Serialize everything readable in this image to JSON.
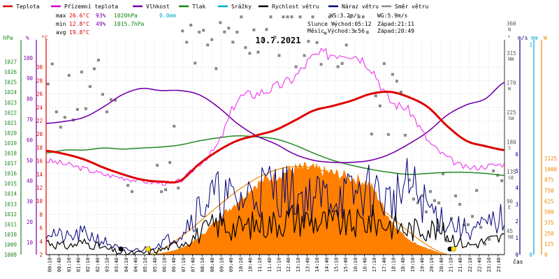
{
  "legend": [
    {
      "label": "Teplota",
      "color": "#dd0000"
    },
    {
      "label": "Přízemní teplota",
      "color": "#cc00cc"
    },
    {
      "label": "Vlhkost",
      "color": "#7700aa"
    },
    {
      "label": "Tlak",
      "color": "#118811"
    },
    {
      "label": "Srážky",
      "color": "#00aacc"
    },
    {
      "label": "Rychlost větru",
      "color": "#000000"
    },
    {
      "label": "Náraz větru",
      "color": "#000077"
    },
    {
      "label": "Směr větru",
      "color": "#888888"
    }
  ],
  "stats": {
    "max_label": "max",
    "max_temp": "26.6°C",
    "max_hum": "93%",
    "max_press": "1020hPa",
    "max_rain": "0.0mm",
    "min_label": "min",
    "min_temp": "12.8°C",
    "min_hum": "49%",
    "min_press": "1015.7hPa",
    "avg_label": "avg",
    "avg_temp": "19.8°C"
  },
  "wind_info": {
    "ws": "WS:3.2m/s",
    "wg": "WG:5.9m/s",
    "sun_rise": "Slunce Východ:05:12",
    "sun_set": "Západ:21:11",
    "moon_rise": "Měsíc  Východ:3:56",
    "moon_set": "Západ:20:49"
  },
  "date": "10.7.2021",
  "axis_units": {
    "hpa": "hPa",
    "pct": "%",
    "degc": "°C",
    "deg": "°",
    "ms": "m/s",
    "mm": "mm",
    "w": "W",
    "time": "čas"
  },
  "colors": {
    "temp": "#dd0000",
    "ground": "#ee44ee",
    "hum": "#7700aa",
    "press": "#228822",
    "wind": "#000000",
    "gust": "#000077",
    "dir": "#888888",
    "solar_area": "#ff8000",
    "solar_max": "#ee8800",
    "rain": "#00aacc"
  },
  "chart_data": {
    "type": "line",
    "title": "10.7.2021",
    "x_label": "čas",
    "x_ticks": [
      "00:10",
      "00:40",
      "01:10",
      "01:40",
      "02:10",
      "02:40",
      "03:10",
      "03:40",
      "04:10",
      "04:40",
      "05:10",
      "05:40",
      "06:10",
      "06:40",
      "07:10",
      "07:40",
      "08:10",
      "08:40",
      "09:10",
      "09:40",
      "10:10",
      "10:40",
      "11:10",
      "11:40",
      "12:10",
      "12:40",
      "13:10",
      "13:40",
      "14:10",
      "14:40",
      "15:10",
      "15:40",
      "16:10",
      "16:40",
      "17:10",
      "17:40",
      "18:10",
      "18:40",
      "19:10",
      "19:40",
      "20:10",
      "20:40",
      "21:10",
      "21:40",
      "22:10",
      "22:40",
      "23:10",
      "23:40"
    ],
    "axes": {
      "pressure_hPa": {
        "range": [
          1008,
          1028
        ],
        "ticks": [
          1008,
          1009,
          1010,
          1011,
          1012,
          1013,
          1014,
          1015,
          1016,
          1017,
          1018,
          1019,
          1020,
          1021,
          1022,
          1023,
          1024,
          1025,
          1026,
          1027
        ]
      },
      "humidity_pct": {
        "range": [
          0,
          105
        ],
        "ticks": [
          10,
          20,
          30,
          40,
          50,
          60,
          70,
          80,
          90,
          100
        ]
      },
      "temperature_C": {
        "range": [
          2,
          32
        ],
        "ticks": [
          2,
          4,
          6,
          8,
          10,
          12,
          14,
          16,
          18,
          20,
          22,
          24,
          26,
          28,
          30
        ]
      },
      "wind_direction_deg": {
        "ticks": [
          {
            "v": 45,
            "l": "NE"
          },
          {
            "v": 90,
            "l": "E"
          },
          {
            "v": 135,
            "l": "SE"
          },
          {
            "v": 180,
            "l": "S"
          },
          {
            "v": 225,
            "l": "SW"
          },
          {
            "v": 270,
            "l": "W"
          },
          {
            "v": 315,
            "l": "NW"
          },
          {
            "v": 360,
            "l": "N"
          }
        ]
      },
      "wind_speed_ms": {
        "range": [
          0,
          6.5
        ],
        "ticks": [
          0,
          1,
          2,
          3,
          4,
          5,
          6
        ]
      },
      "rain_mm": {
        "ticks": [
          0,
          1
        ]
      },
      "solar_W": {
        "range": [
          0,
          1150
        ],
        "ticks": [
          0,
          125,
          250,
          375,
          500,
          625,
          750,
          875,
          1000,
          1125
        ]
      }
    },
    "series": [
      {
        "name": "Teplota",
        "unit": "°C",
        "x": [
          0,
          1,
          2,
          3,
          4,
          5,
          6,
          7,
          8,
          9,
          10,
          11,
          12,
          13,
          14,
          15,
          16,
          17,
          18,
          19,
          20,
          21,
          22,
          23,
          24
        ],
        "values": [
          17.5,
          17.0,
          16.2,
          15.0,
          14.0,
          13.2,
          12.9,
          13.0,
          15.5,
          17.5,
          19.0,
          19.8,
          20.6,
          22.0,
          23.5,
          24.2,
          25.0,
          26.0,
          26.3,
          25.5,
          24.0,
          21.2,
          19.0,
          18.2,
          17.6
        ]
      },
      {
        "name": "Přízemní teplota",
        "unit": "°C",
        "x": [
          0,
          1,
          2,
          3,
          4,
          5,
          6,
          7,
          8,
          9,
          10,
          11,
          12,
          13,
          14,
          15,
          16,
          17,
          18,
          19,
          20,
          21,
          22,
          23,
          24
        ],
        "values": [
          16.0,
          15.5,
          14.8,
          14.0,
          13.5,
          13.0,
          12.7,
          13.0,
          15.5,
          18.5,
          25.0,
          26.0,
          27.0,
          28.5,
          31.5,
          32.0,
          32.0,
          30.0,
          25.0,
          23.5,
          19.0,
          16.5,
          15.0,
          15.2,
          15.5
        ]
      },
      {
        "name": "Vlhkost",
        "unit": "%",
        "x": [
          0,
          1,
          2,
          3,
          4,
          5,
          6,
          7,
          8,
          9,
          10,
          11,
          12,
          13,
          14,
          15,
          16,
          17,
          18,
          19,
          20,
          21,
          22,
          23,
          24
        ],
        "values": [
          68,
          69,
          71,
          76,
          82,
          85,
          84,
          84,
          82,
          76,
          68,
          62,
          58,
          53,
          50,
          49,
          49,
          50,
          53,
          58,
          64,
          72,
          77,
          80,
          88
        ]
      },
      {
        "name": "Tlak",
        "unit": "hPa",
        "x": [
          0,
          1,
          2,
          3,
          4,
          5,
          6,
          7,
          8,
          9,
          10,
          11,
          12,
          13,
          14,
          15,
          16,
          17,
          18,
          19,
          20,
          21,
          22,
          23,
          24
        ],
        "values": [
          1018.0,
          1018.3,
          1018.3,
          1018.5,
          1018.4,
          1018.5,
          1018.6,
          1018.8,
          1019.2,
          1019.5,
          1019.7,
          1019.6,
          1019.4,
          1018.8,
          1018.0,
          1017.3,
          1016.8,
          1016.4,
          1016.1,
          1015.9,
          1016.0,
          1016.1,
          1016.1,
          1016.0,
          1015.8
        ]
      },
      {
        "name": "Rychlost větru",
        "unit": "m/s",
        "x": [
          0,
          1,
          2,
          3,
          4,
          5,
          6,
          7,
          8,
          9,
          10,
          11,
          12,
          13,
          14,
          15,
          16,
          17,
          18,
          19,
          20,
          21,
          22,
          23,
          24
        ],
        "values": [
          0.8,
          0.5,
          0.7,
          0.4,
          0.1,
          0.1,
          0.3,
          0.7,
          1.2,
          1.8,
          1.6,
          1.8,
          1.9,
          2.2,
          2.0,
          1.9,
          1.8,
          2.0,
          1.8,
          1.5,
          1.6,
          1.2,
          0.6,
          0.8,
          1.0
        ]
      },
      {
        "name": "Náraz větru",
        "unit": "m/s",
        "x": [
          0,
          1,
          2,
          3,
          4,
          5,
          6,
          7,
          8,
          9,
          10,
          11,
          12,
          13,
          14,
          15,
          16,
          17,
          18,
          19,
          20,
          21,
          22,
          23,
          24
        ],
        "values": [
          1.5,
          1.0,
          1.2,
          0.8,
          0.3,
          0.3,
          0.7,
          1.3,
          2.8,
          3.5,
          3.2,
          3.8,
          4.0,
          3.6,
          3.4,
          3.5,
          3.5,
          3.8,
          3.2,
          4.0,
          2.8,
          2.0,
          1.5,
          1.7,
          2.2
        ]
      },
      {
        "name": "Solární záření",
        "unit": "W",
        "x": [
          0,
          5.5,
          7,
          8,
          9,
          10,
          11,
          12,
          13,
          14,
          15,
          16,
          17,
          18,
          19,
          20,
          21,
          24
        ],
        "values": [
          0,
          0,
          70,
          200,
          420,
          620,
          820,
          920,
          1000,
          1000,
          950,
          900,
          800,
          420,
          180,
          70,
          0,
          0
        ]
      }
    ]
  }
}
